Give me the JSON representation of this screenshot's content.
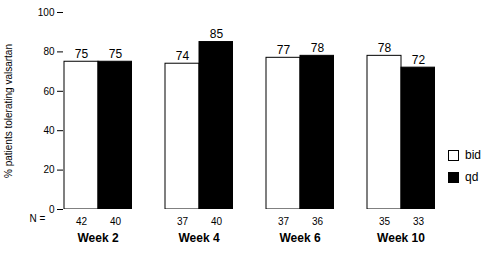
{
  "chart_data": {
    "type": "bar",
    "categories": [
      "Week 2",
      "Week 4",
      "Week 6",
      "Week 10"
    ],
    "series": [
      {
        "name": "bid",
        "color": "#ffffff",
        "values": [
          75,
          74,
          77,
          78
        ],
        "n": [
          42,
          37,
          37,
          35
        ]
      },
      {
        "name": "qd",
        "color": "#000000",
        "values": [
          75,
          85,
          78,
          72
        ],
        "n": [
          40,
          40,
          36,
          33
        ]
      }
    ],
    "y_label": "% patients tolerating valsartan",
    "n_label": "N =",
    "ylim": [
      0,
      100
    ],
    "yticks": [
      0,
      20,
      40,
      60,
      80,
      100
    ],
    "data_labels": true,
    "legend": "right"
  }
}
